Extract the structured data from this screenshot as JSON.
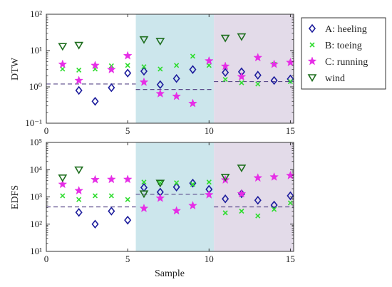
{
  "chart_data": [
    {
      "type": "scatter",
      "ylabel": "DTW",
      "xlabel": "",
      "xlim": [
        0,
        15.2
      ],
      "ylim": [
        0.1,
        100
      ],
      "yscale": "log",
      "xticks": [
        "0",
        "5",
        "10",
        "15"
      ],
      "yticks": [
        "10⁻¹",
        "10⁰",
        "10¹",
        "10²"
      ],
      "shaded_regions": [
        {
          "x": [
            5.5,
            10.3
          ],
          "color": "#cce6ec"
        },
        {
          "x": [
            10.3,
            15.2
          ],
          "color": "#e3dbe9"
        }
      ],
      "reference_lines": [
        {
          "x": [
            0,
            5.5
          ],
          "y": 1.2
        },
        {
          "x": [
            5.5,
            10.3
          ],
          "y": 0.85
        },
        {
          "x": [
            10.3,
            15.2
          ],
          "y": 1.4
        }
      ],
      "series": [
        {
          "name": "A: heeling",
          "x": [
            2,
            3,
            4,
            5,
            6,
            7,
            8,
            9,
            11,
            12,
            13,
            14,
            15
          ],
          "y": [
            0.8,
            0.4,
            0.95,
            2.4,
            2.7,
            1.15,
            1.7,
            3.0,
            2.5,
            2.6,
            2.1,
            1.5,
            1.65
          ]
        },
        {
          "name": "B: toeing",
          "x": [
            1,
            2,
            3,
            4,
            5,
            6,
            7,
            8,
            9,
            10,
            11,
            12,
            13,
            14,
            15
          ],
          "y": [
            3.1,
            2.9,
            3.1,
            3.8,
            3.9,
            3.6,
            3.1,
            3.9,
            7.0,
            3.9,
            1.6,
            1.3,
            1.2,
            4.2,
            1.4
          ]
        },
        {
          "name": "C: running",
          "x": [
            1,
            2,
            3,
            4,
            5,
            6,
            7,
            8,
            9,
            10,
            11,
            12,
            13,
            14,
            15
          ],
          "y": [
            4.2,
            1.5,
            3.9,
            3.0,
            7.2,
            1.35,
            0.65,
            0.55,
            0.35,
            5.2,
            3.7,
            1.9,
            6.4,
            4.2,
            4.7
          ]
        },
        {
          "name": "wind",
          "x": [
            1,
            2,
            6,
            7,
            11,
            12
          ],
          "y": [
            13,
            14,
            20,
            18,
            22,
            24
          ]
        }
      ]
    },
    {
      "type": "scatter",
      "ylabel": "EDFS",
      "xlabel": "Sample",
      "xlim": [
        0,
        15.2
      ],
      "ylim": [
        10,
        100000
      ],
      "yscale": "log",
      "xticks": [
        "0",
        "5",
        "10",
        "15"
      ],
      "yticks": [
        "10¹",
        "10²",
        "10³",
        "10⁴",
        "10⁵"
      ],
      "shaded_regions": [
        {
          "x": [
            5.5,
            10.3
          ],
          "color": "#cce6ec"
        },
        {
          "x": [
            10.3,
            15.2
          ],
          "color": "#e3dbe9"
        }
      ],
      "reference_lines": [
        {
          "x": [
            0,
            5.5
          ],
          "y": 430
        },
        {
          "x": [
            5.5,
            10.3
          ],
          "y": 1250
        },
        {
          "x": [
            10.3,
            15.2
          ],
          "y": 430
        }
      ],
      "series": [
        {
          "name": "A: heeling",
          "x": [
            2,
            3,
            4,
            5,
            6,
            7,
            8,
            9,
            10,
            11,
            12,
            13,
            14,
            15
          ],
          "y": [
            270,
            100,
            300,
            140,
            2200,
            1500,
            2300,
            3200,
            1900,
            850,
            1300,
            750,
            500,
            1100
          ]
        },
        {
          "name": "B: toeing",
          "x": [
            1,
            2,
            3,
            4,
            5,
            6,
            7,
            8,
            9,
            10,
            11,
            12,
            13,
            14,
            15
          ],
          "y": [
            1100,
            800,
            1100,
            1100,
            800,
            3500,
            3300,
            3300,
            2900,
            3500,
            260,
            300,
            200,
            350,
            600
          ]
        },
        {
          "name": "C: running",
          "x": [
            1,
            2,
            3,
            4,
            5,
            6,
            7,
            8,
            9,
            10,
            11,
            12,
            13,
            14,
            15
          ],
          "y": [
            2900,
            1700,
            4300,
            4400,
            4400,
            380,
            900,
            310,
            480,
            1200,
            4200,
            1300,
            5000,
            5400,
            6100
          ]
        },
        {
          "name": "wind",
          "x": [
            1,
            2,
            6,
            7,
            11,
            12
          ],
          "y": [
            5000,
            9800,
            1300,
            3200,
            5300,
            11500
          ]
        }
      ]
    }
  ],
  "legend": [
    {
      "label": "A: heeling",
      "marker": "diamond",
      "color": "#1c1c9c"
    },
    {
      "label": "B: toeing",
      "marker": "x",
      "color": "#2edc2e"
    },
    {
      "label": "C: running",
      "marker": "star",
      "color": "#e62ee6"
    },
    {
      "label": "wind",
      "marker": "triangle-down",
      "color": "#1e6e1e"
    }
  ],
  "colors": {
    "region_b": "#cce6ec",
    "region_c": "#e3dbe9",
    "reference_line": "#5a4a8a"
  }
}
